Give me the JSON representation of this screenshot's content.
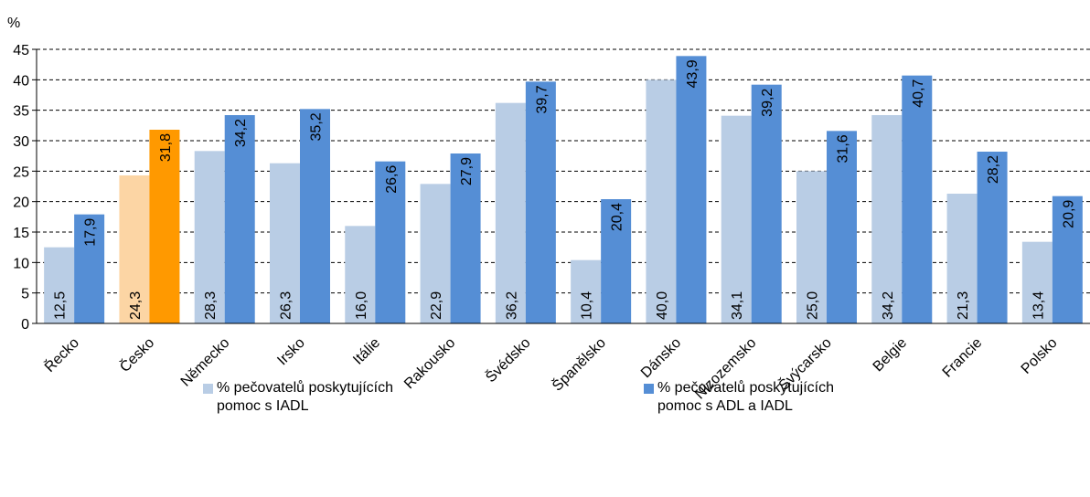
{
  "chart_data": {
    "type": "bar",
    "ylabel": "%",
    "ylim": [
      0,
      45
    ],
    "yticks": [
      0,
      5,
      10,
      15,
      20,
      25,
      30,
      35,
      40,
      45
    ],
    "grid": "horizontal dashed",
    "legend_position": "bottom",
    "categories": [
      "Řecko",
      "Česko",
      "Německo",
      "Irsko",
      "Itálie",
      "Rakousko",
      "Švédsko",
      "Španělsko",
      "Dánsko",
      "Nizozemsko",
      "Švýcarsko",
      "Belgie",
      "Francie",
      "Polsko"
    ],
    "value_labels": [
      [
        "12,5",
        "24,3",
        "28,3",
        "26,3",
        "16,0",
        "22,9",
        "36,2",
        "10,4",
        "40,0",
        "34,1",
        "25,0",
        "34,2",
        "21,3",
        "13,4"
      ],
      [
        "17,9",
        "31,8",
        "34,2",
        "35,2",
        "26,6",
        "27,9",
        "39,7",
        "20,4",
        "43,9",
        "39,2",
        "31,6",
        "40,7",
        "28,2",
        "20,9"
      ]
    ],
    "series": [
      {
        "name": "% pečovatelů poskytujících pomoc s IADL",
        "color": "#b9cde5",
        "highlight_color": "#fcd5a4",
        "values": [
          12.5,
          24.3,
          28.3,
          26.3,
          16.0,
          22.9,
          36.2,
          10.4,
          40.0,
          34.1,
          25.0,
          34.2,
          21.3,
          13.4
        ]
      },
      {
        "name": "% pečovatelů poskytujících pomoc s ADL a IADL",
        "color": "#558ed5",
        "highlight_color": "#ff9900",
        "values": [
          17.9,
          31.8,
          34.2,
          35.2,
          26.6,
          27.9,
          39.7,
          20.4,
          43.9,
          39.2,
          31.6,
          40.7,
          28.2,
          20.9
        ]
      }
    ],
    "highlight_category": "Česko"
  },
  "legend": {
    "item1_line1": "% pečovatelů poskytujících",
    "item1_line2": "pomoc s IADL",
    "item2_line1": "% pečovatelů poskytujících",
    "item2_line2": "pomoc s ADL a IADL"
  }
}
